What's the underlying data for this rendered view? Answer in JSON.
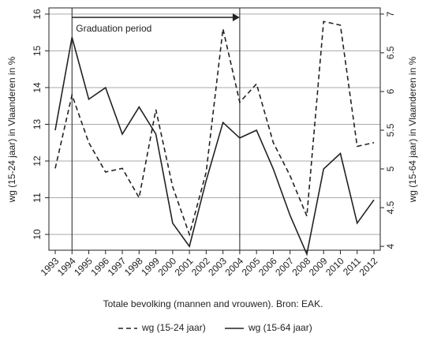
{
  "chart_data": {
    "type": "line",
    "categories": [
      "1993",
      "1994",
      "1995",
      "1996",
      "1997",
      "1998",
      "1999",
      "2000",
      "2001",
      "2002",
      "2003",
      "2004",
      "2005",
      "2006",
      "2007",
      "2008",
      "2009",
      "2010",
      "2011",
      "2012"
    ],
    "series": [
      {
        "name": "wg (15-24 jaar)",
        "color": "#222222",
        "dash": true,
        "values": [
          11.8,
          13.8,
          12.5,
          11.7,
          11.8,
          11.0,
          13.4,
          11.3,
          10.0,
          11.7,
          15.6,
          13.6,
          14.1,
          12.5,
          11.6,
          10.5,
          15.8,
          15.7,
          12.4,
          12.5
        ]
      },
      {
        "name": "wg (15-64 jaar)",
        "color": "#222222",
        "dash": false,
        "axis": "y2",
        "values": [
          5.5,
          6.7,
          5.9,
          6.05,
          5.45,
          5.8,
          5.45,
          4.3,
          4.0,
          4.85,
          5.6,
          5.4,
          5.5,
          5.0,
          4.4,
          3.9,
          5.0,
          5.2,
          4.3,
          4.6
        ]
      }
    ],
    "ylabel": "wg (15-24 jaar) in Vlaanderen in %",
    "y2label": "wg (15-64 jaar) in Vlaanderen in %",
    "xlabel": "Totale bevolking (mannen and vrouwen). Bron: EAK.",
    "annotation": "Graduation period",
    "ylim": [
      9.57,
      16.17
    ],
    "yticks": [
      10,
      11,
      12,
      13,
      14,
      15,
      16
    ],
    "y2lim": [
      3.95,
      7.08
    ],
    "y2ticks": [
      4,
      4.5,
      5,
      5.5,
      6,
      6.5,
      7
    ],
    "grid": true,
    "legend": "bottom"
  }
}
